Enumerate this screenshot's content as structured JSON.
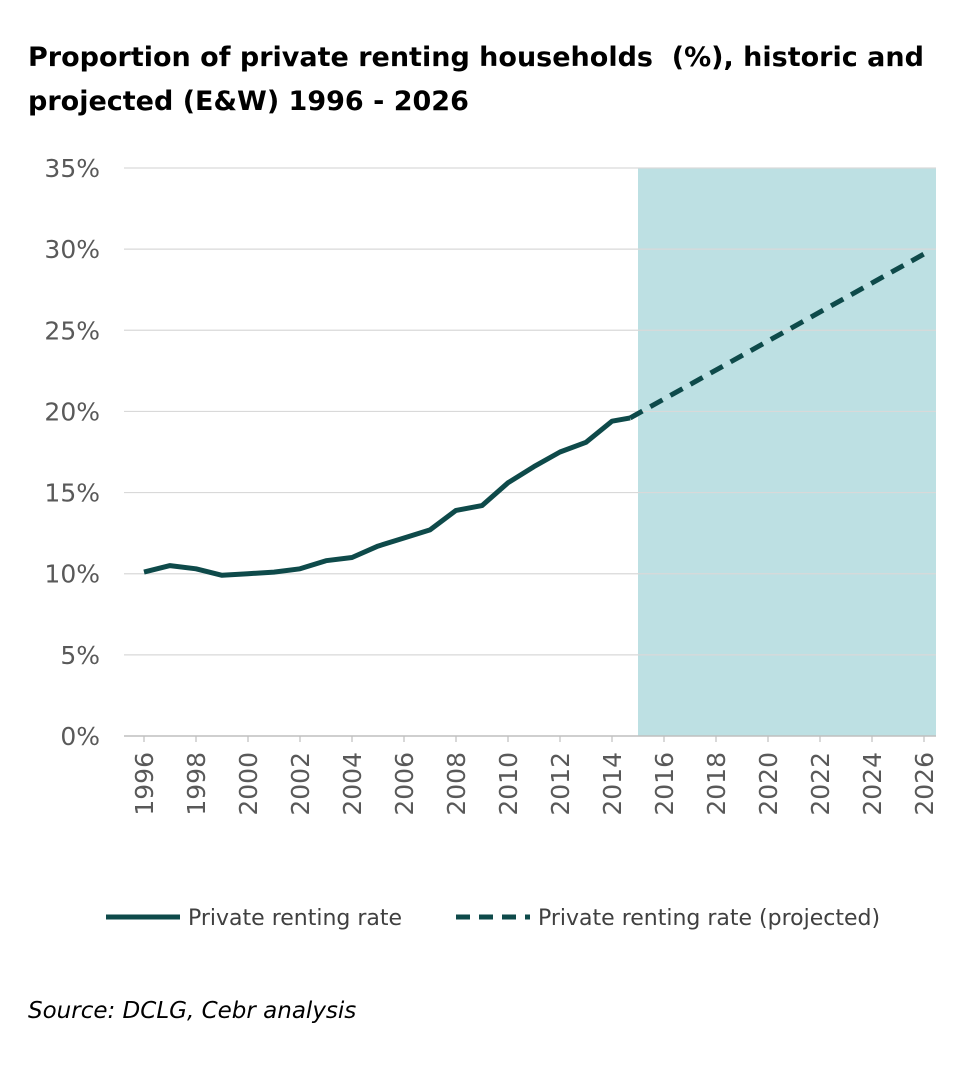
{
  "chart_data": {
    "type": "line",
    "title_lines": [
      "Proportion of private renting households  (%), historic and",
      "projected (E&W) 1996 - 2026"
    ],
    "xlabel": "",
    "ylabel": "",
    "x_ticks": [
      "1996",
      "1998",
      "2000",
      "2002",
      "2004",
      "2006",
      "2008",
      "2010",
      "2012",
      "2014",
      "2016",
      "2018",
      "2020",
      "2022",
      "2024",
      "2026"
    ],
    "x_range": [
      1996,
      2026
    ],
    "y_ticks": [
      "0%",
      "5%",
      "10%",
      "15%",
      "20%",
      "25%",
      "30%",
      "35%"
    ],
    "ylim": [
      0,
      35
    ],
    "grid": "horizontal",
    "shaded_region": {
      "x_start": 2015,
      "x_end": 2026.7,
      "color": "#bde0e3"
    },
    "line_color": "#0e4a4a",
    "legend_position": "bottom",
    "series": [
      {
        "name": "Private renting rate",
        "style": "solid",
        "x": [
          1996,
          1997,
          1998,
          1999,
          2000,
          2001,
          2002,
          2003,
          2004,
          2005,
          2006,
          2007,
          2008,
          2009,
          2010,
          2011,
          2012,
          2013,
          2014,
          2014.7
        ],
        "y": [
          10.1,
          10.5,
          10.3,
          9.9,
          10.0,
          10.1,
          10.3,
          10.8,
          11.0,
          11.7,
          12.2,
          12.7,
          13.9,
          14.2,
          15.6,
          16.6,
          17.5,
          18.1,
          19.4,
          19.6
        ]
      },
      {
        "name": "Private renting rate (projected)",
        "style": "dashed",
        "x": [
          2014.7,
          2026
        ],
        "y": [
          19.6,
          29.7
        ]
      }
    ]
  },
  "source": "Source: DCLG, Cebr analysis"
}
